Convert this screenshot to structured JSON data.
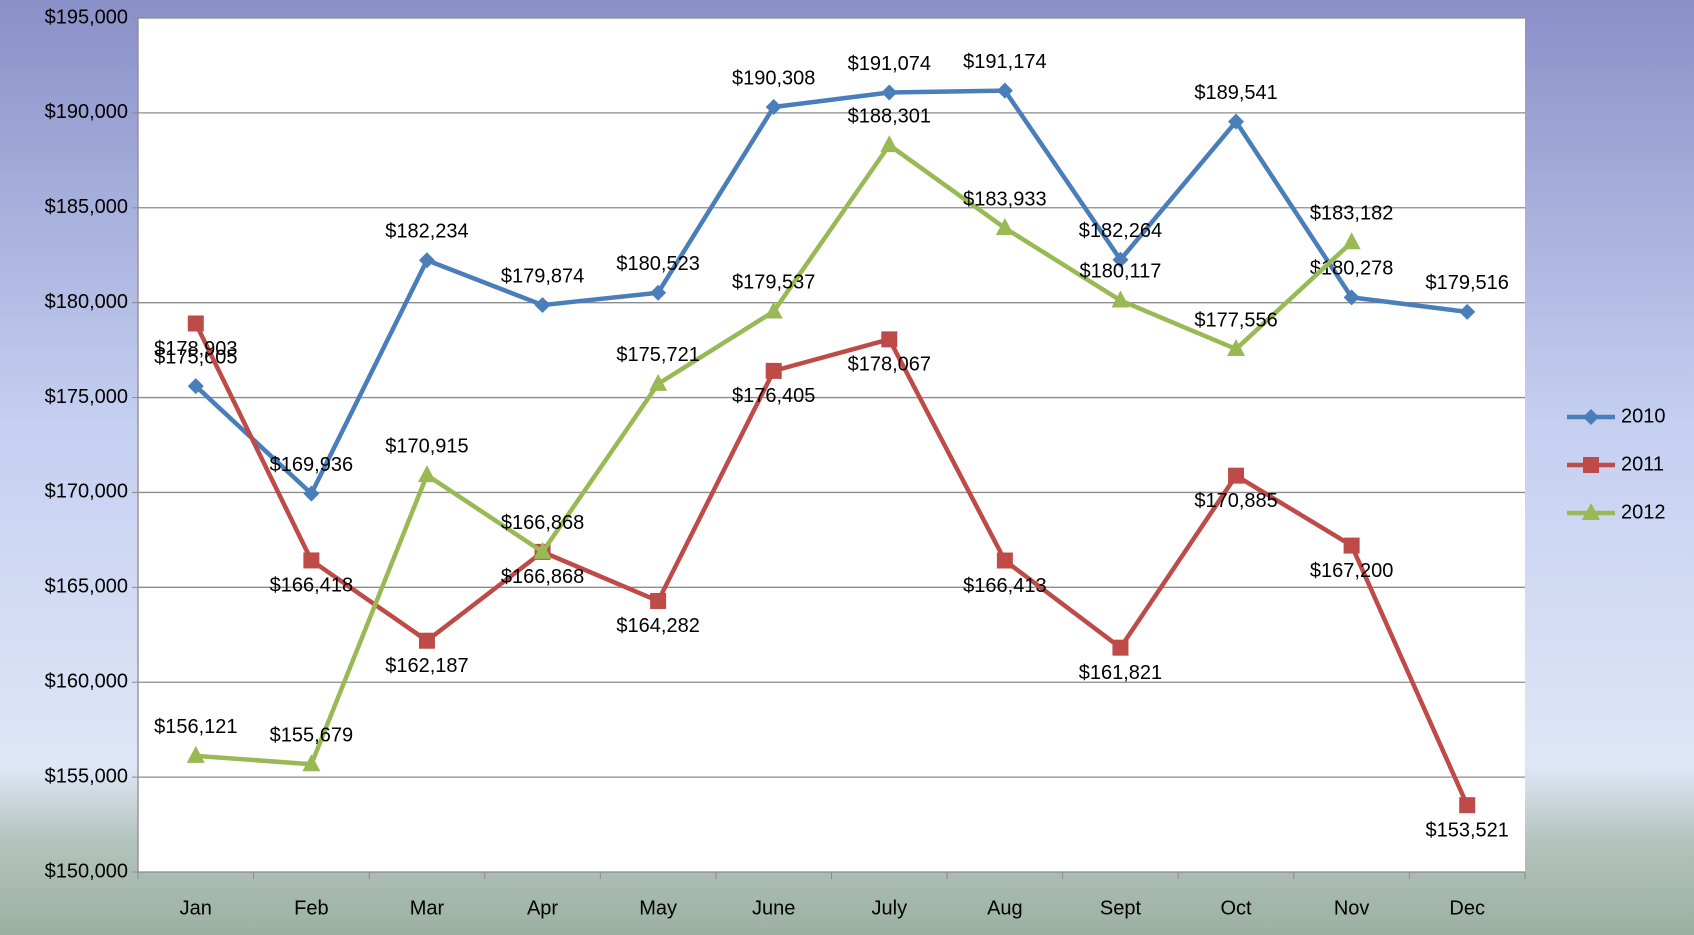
{
  "chart_data": {
    "type": "line",
    "categories": [
      "Jan",
      "Feb",
      "Mar",
      "Apr",
      "May",
      "June",
      "July",
      "Aug",
      "Sept",
      "Oct",
      "Nov",
      "Dec"
    ],
    "series": [
      {
        "name": "2010",
        "color": "#4a7ebb",
        "marker": "diamond",
        "values": [
          175605,
          169936,
          182234,
          179874,
          180523,
          190308,
          191074,
          191174,
          182264,
          189541,
          180278,
          179516
        ],
        "value_labels": [
          "$175,605",
          "$169,936",
          "$182,234",
          "$179,874",
          "$180,523",
          "$190,308",
          "$191,074",
          "$191,174",
          "$182,264",
          "$189,541",
          "$180,278",
          "$179,516"
        ]
      },
      {
        "name": "2011",
        "color": "#be4b48",
        "marker": "square",
        "values": [
          178903,
          166418,
          162187,
          166868,
          164282,
          176405,
          178067,
          166413,
          161821,
          170885,
          167200,
          153521
        ],
        "value_labels": [
          "$178,903",
          "$166,418",
          "$162,187",
          "$166,868",
          "$164,282",
          "$176,405",
          "$178,067",
          "$166,413",
          "$161,821",
          "$170,885",
          "$167,200",
          "$153,521"
        ]
      },
      {
        "name": "2012",
        "color": "#98b954",
        "marker": "triangle",
        "values": [
          156121,
          155679,
          170915,
          166868,
          175721,
          179537,
          188301,
          183933,
          180117,
          177556,
          183182,
          null
        ],
        "value_labels": [
          "$156,121",
          "$155,679",
          "$170,915",
          "$166,868",
          "$175,721",
          "$179,537",
          "$188,301",
          "$183,933",
          "$180,117",
          "$177,556",
          "$183,182",
          null
        ]
      }
    ],
    "ylim": [
      150000,
      195000
    ],
    "yticks": [
      {
        "value": 150000,
        "label": "$150,000"
      },
      {
        "value": 155000,
        "label": "$155,000"
      },
      {
        "value": 160000,
        "label": "$160,000"
      },
      {
        "value": 165000,
        "label": "$165,000"
      },
      {
        "value": 170000,
        "label": "$170,000"
      },
      {
        "value": 175000,
        "label": "$175,000"
      },
      {
        "value": 180000,
        "label": "$180,000"
      },
      {
        "value": 185000,
        "label": "$185,000"
      },
      {
        "value": 190000,
        "label": "$190,000"
      },
      {
        "value": 195000,
        "label": "$195,000"
      }
    ],
    "grid": true,
    "legend": "right"
  }
}
